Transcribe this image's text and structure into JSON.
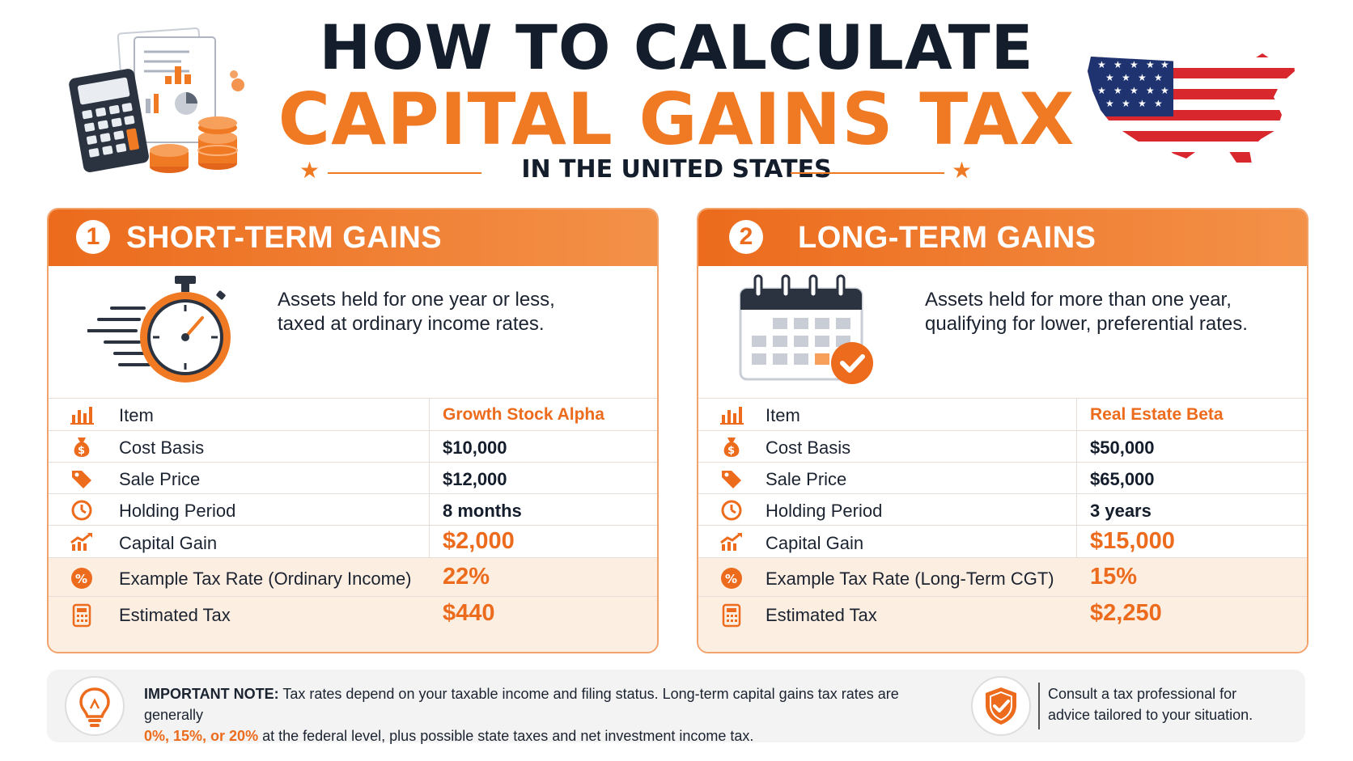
{
  "header": {
    "title_line1": "HOW TO CALCULATE",
    "title_line2": "CAPITAL GAINS TAX",
    "subtitle": "IN THE UNITED STATES"
  },
  "short_term": {
    "number": "1",
    "title": "SHORT-TERM GAINS",
    "desc_line1": "Assets held for one year or less,",
    "desc_line2": "taxed at ordinary income rates.",
    "rows": [
      {
        "label": "Item",
        "value": "Growth Stock Alpha"
      },
      {
        "label": "Cost Basis",
        "value": "$10,000"
      },
      {
        "label": "Sale Price",
        "value": "$12,000"
      },
      {
        "label": "Holding Period",
        "value": "8 months"
      },
      {
        "label": "Capital Gain",
        "value": "$2,000"
      },
      {
        "label": "Example Tax Rate (Ordinary Income)",
        "value": "22%"
      },
      {
        "label": "Estimated Tax",
        "value": "$440"
      }
    ]
  },
  "long_term": {
    "number": "2",
    "title": "LONG-TERM GAINS",
    "desc_line1": "Assets held for more than one year,",
    "desc_line2": "qualifying for lower, preferential rates.",
    "rows": [
      {
        "label": "Item",
        "value": "Real Estate Beta"
      },
      {
        "label": "Cost Basis",
        "value": "$50,000"
      },
      {
        "label": "Sale Price",
        "value": "$65,000"
      },
      {
        "label": "Holding Period",
        "value": "3 years"
      },
      {
        "label": "Capital Gain",
        "value": "$15,000"
      },
      {
        "label": "Example Tax Rate (Long-Term CGT)",
        "value": "15%"
      },
      {
        "label": "Estimated Tax",
        "value": "$2,250"
      }
    ]
  },
  "note": {
    "label": "IMPORTANT NOTE:",
    "text1": " Tax rates depend on your taxable income and filing status. Long-term capital gains tax rates are generally",
    "rates": "0%, 15%, or 20%",
    "text2": " at the federal level, plus possible state taxes and net investment income tax.",
    "consult_line1": "Consult a tax professional for",
    "consult_line2": "advice tailored to your situation."
  },
  "colors": {
    "accent": "#ec6b1c",
    "navy": "#141d2b",
    "tint": "#fdeee2"
  }
}
